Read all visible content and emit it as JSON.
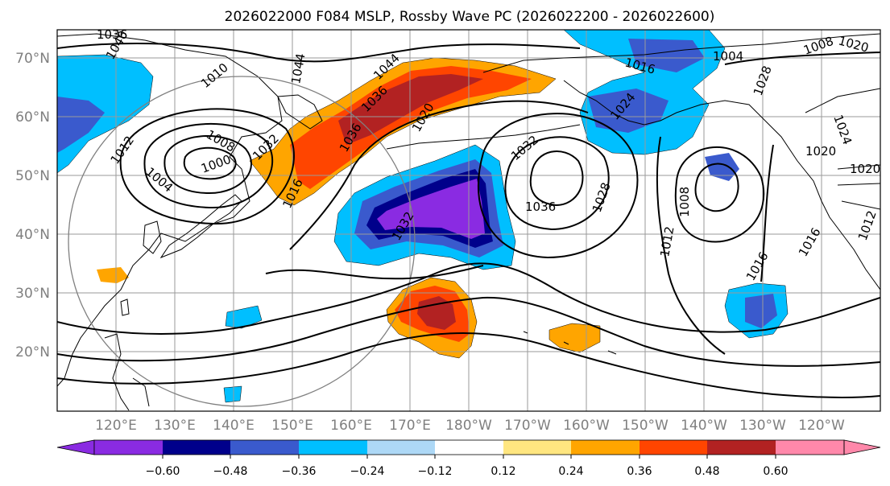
{
  "title": "2026022000 F084 MSLP, Rossby Wave PC (2026022200 - 2026022600)",
  "map": {
    "lat_labels": [
      "70°N",
      "60°N",
      "50°N",
      "40°N",
      "30°N",
      "20°N"
    ],
    "lon_labels": [
      "120°E",
      "130°E",
      "140°E",
      "150°E",
      "160°E",
      "170°E",
      "180°W",
      "170°W",
      "160°W",
      "150°W",
      "140°W",
      "130°W",
      "120°W"
    ],
    "isobar_labels": [
      "1036",
      "1040",
      "1044",
      "1044",
      "1036",
      "1036",
      "1032",
      "1028",
      "1020",
      "1016",
      "1012",
      "1008",
      "1004",
      "1000",
      "1012",
      "1016",
      "1032",
      "1032",
      "1036",
      "1028",
      "1012",
      "1008",
      "1016",
      "1008",
      "1016",
      "1004",
      "1024",
      "1010",
      "1020",
      "1020",
      "1020",
      "1024"
    ]
  },
  "colorbar": {
    "ticks": [
      "−0.60",
      "−0.48",
      "−0.36",
      "−0.24",
      "−0.12",
      "0.12",
      "0.24",
      "0.36",
      "0.48",
      "0.60"
    ],
    "colors": [
      "#8a2be2",
      "#8a2be2",
      "#00008b",
      "#3a5acd",
      "#00bfff",
      "#add8f6",
      "#ffffff",
      "#ffe680",
      "#ffa500",
      "#ff4500",
      "#b22222",
      "#ff88aa",
      "#ff88aa"
    ]
  },
  "colors": {
    "land_outline": "#000000",
    "isobar": "#000000",
    "grid": "#9a9a9a",
    "circle": "#808080"
  }
}
